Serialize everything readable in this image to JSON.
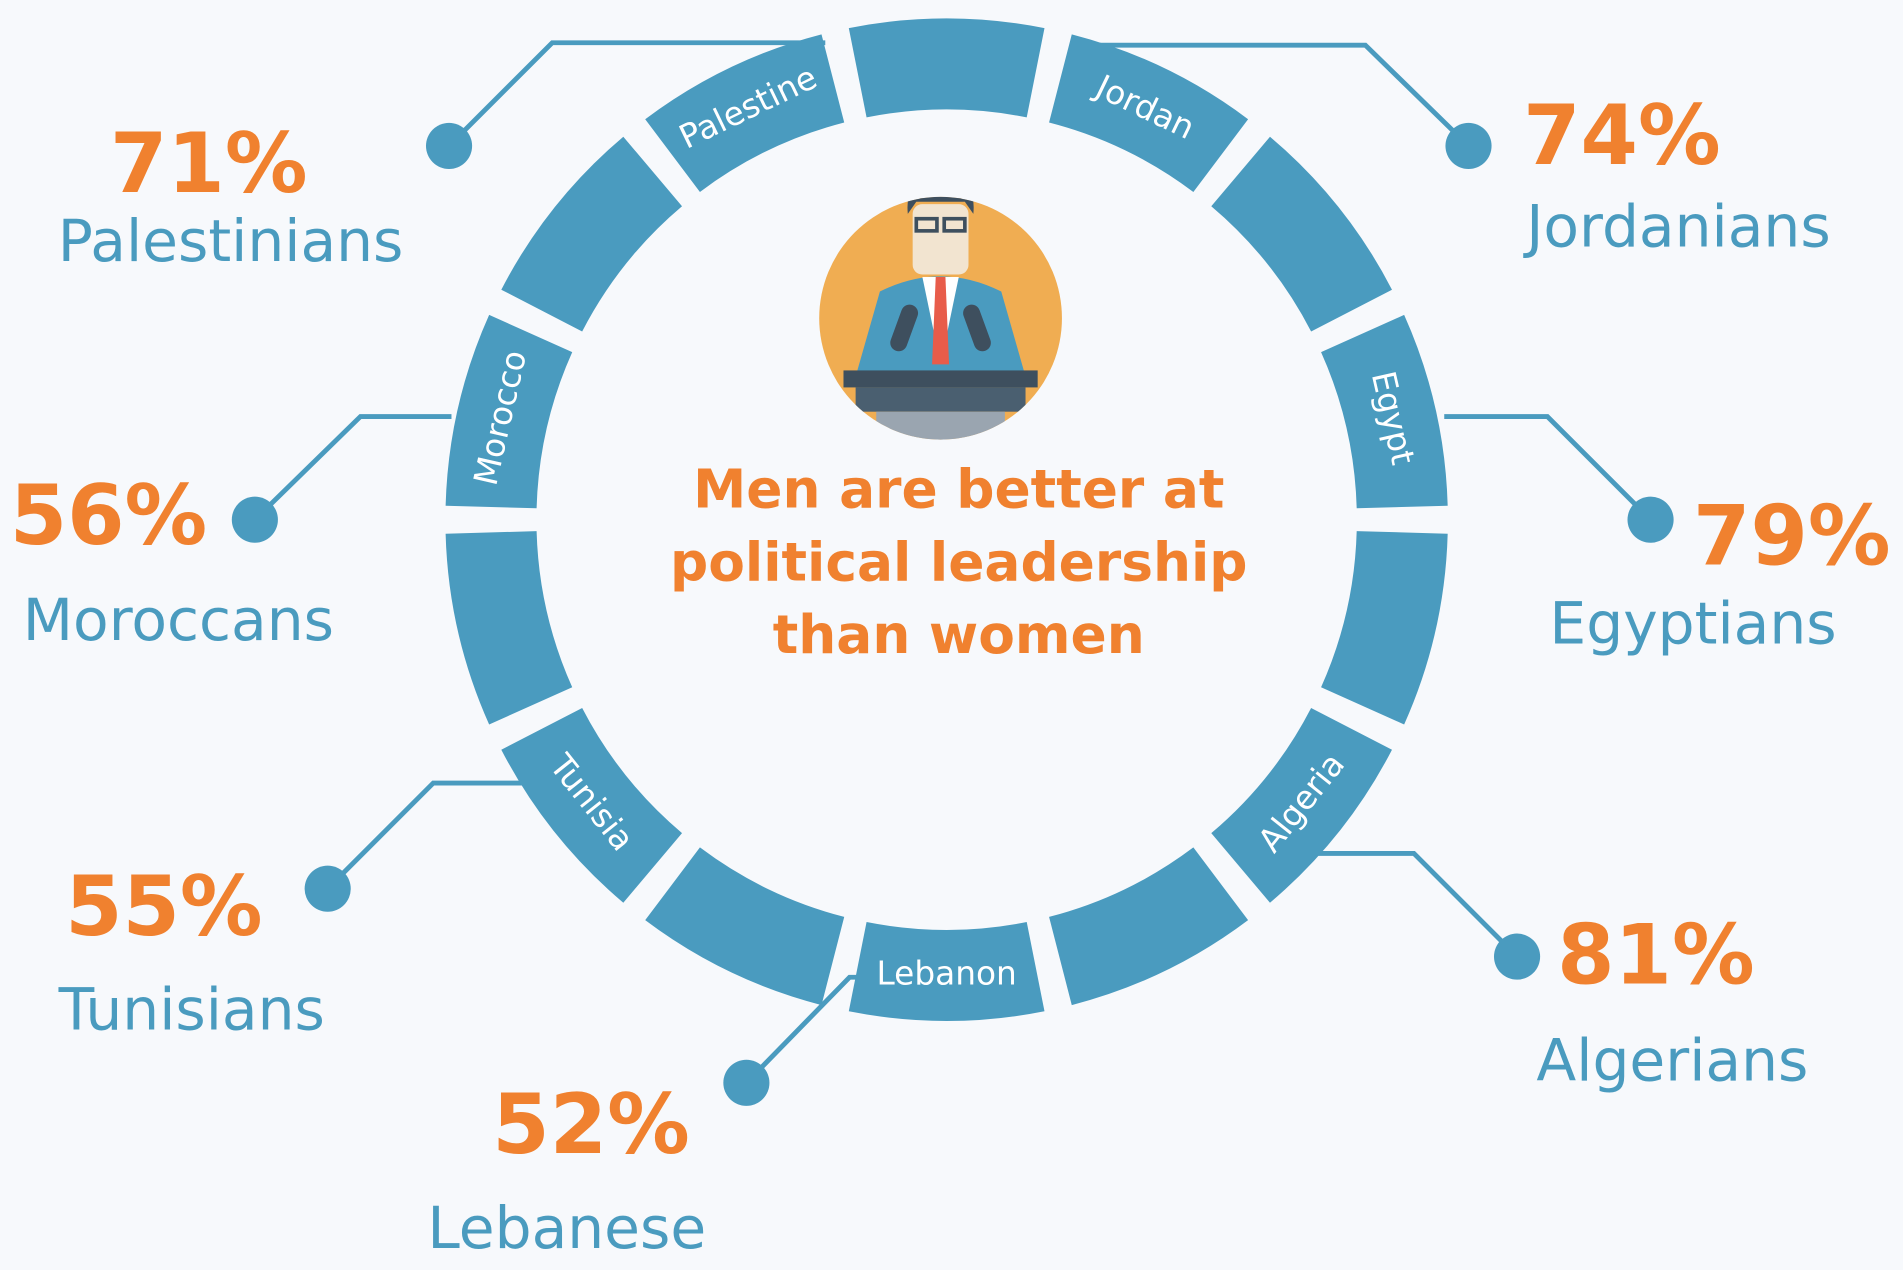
{
  "title_lines": [
    "Men are better at",
    "political leadership",
    "than women"
  ],
  "items": [
    {
      "segment": "Palestine",
      "percent": "71%",
      "people": "Palestinians"
    },
    {
      "segment": "Jordan",
      "percent": "74%",
      "people": "Jordanians"
    },
    {
      "segment": "Morocco",
      "percent": "56%",
      "people": "Moroccans"
    },
    {
      "segment": "Egypt",
      "percent": "79%",
      "people": "Egyptians"
    },
    {
      "segment": "Tunisia",
      "percent": "55%",
      "people": "Tunisians"
    },
    {
      "segment": "Algeria",
      "percent": "81%",
      "people": "Algerians"
    },
    {
      "segment": "Lebanon",
      "percent": "52%",
      "people": "Lebanese"
    }
  ]
}
